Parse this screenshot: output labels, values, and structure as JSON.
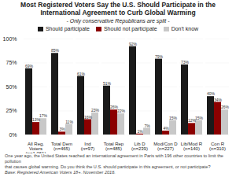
{
  "chart_data": {
    "type": "bar",
    "title": "Most Registered Voters Say the U.S. Should Participate in the\nInternational Agreement to Curb Global Warming",
    "subtitle": "- Only conservative Republicans are split -",
    "categories": [
      "All Reg.\nVoters\n(n=1,061)",
      "Total Dem\n(n=465)",
      "Ind\n(n=97)",
      "Total Rep\n(n=485)",
      "Lib D\n(n=239)",
      "Mod/Con D\n(n=227)",
      "Lib/Mod R\n(n=140)",
      "Con R\n(n=310)"
    ],
    "series": [
      {
        "name": "Should participate",
        "color": "#1a1a1a",
        "values": [
          69,
          85,
          61,
          51,
          92,
          79,
          73,
          40
        ],
        "value_labels": [
          "69%",
          "85%",
          "61%",
          "51%",
          "92%",
          "79%",
          "73%",
          "40%"
        ]
      },
      {
        "name": "Should not participate",
        "color": "#8b0000",
        "values": [
          13,
          3,
          16,
          26,
          1,
          4,
          12,
          34
        ],
        "value_labels": [
          "13%",
          "3%",
          "16%",
          "26%",
          "1%",
          "4%",
          "12%",
          "34%"
        ]
      },
      {
        "name": "Don't know",
        "color": "#c8c8c8",
        "values": [
          17,
          11,
          23,
          22,
          7,
          15,
          15,
          26
        ],
        "value_labels": [
          "17%",
          "11%",
          "23%",
          "22%",
          "7%",
          "15%",
          "15%",
          "26%"
        ]
      }
    ],
    "ylim": [
      0,
      100
    ],
    "yticks": [
      {
        "value": 0,
        "label": "0%"
      },
      {
        "value": 25,
        "label": "25%"
      },
      {
        "value": 50,
        "label": "50%"
      },
      {
        "value": 75,
        "label": "75%"
      },
      {
        "value": 100,
        "label": "100%"
      }
    ],
    "grid": true,
    "legend": "top",
    "data_labels": true,
    "annotations": [
      "One year ago, the United States reached an international agreement in Paris with 196 other countries to limit the pollution",
      "that causes global warming. Do you think the U.S. should participate in this agreement, or not participate?",
      "Base: Registered American Voters 18+.  November 2016."
    ]
  }
}
